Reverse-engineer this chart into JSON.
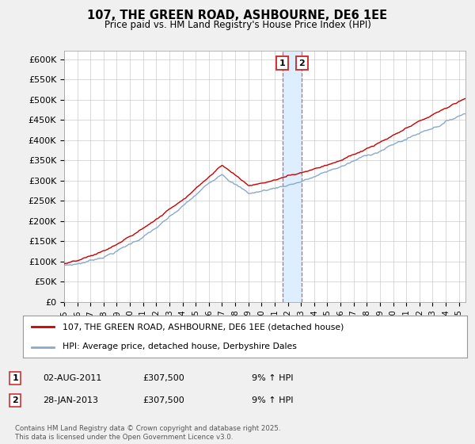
{
  "title": "107, THE GREEN ROAD, ASHBOURNE, DE6 1EE",
  "subtitle": "Price paid vs. HM Land Registry's House Price Index (HPI)",
  "ylabel_ticks": [
    "£0",
    "£50K",
    "£100K",
    "£150K",
    "£200K",
    "£250K",
    "£300K",
    "£350K",
    "£400K",
    "£450K",
    "£500K",
    "£550K",
    "£600K"
  ],
  "ytick_values": [
    0,
    50000,
    100000,
    150000,
    200000,
    250000,
    300000,
    350000,
    400000,
    450000,
    500000,
    550000,
    600000
  ],
  "ylim": [
    0,
    620000
  ],
  "xlim_start": 1995.0,
  "xlim_end": 2025.5,
  "xtick_years": [
    1995,
    1996,
    1997,
    1998,
    1999,
    2000,
    2001,
    2002,
    2003,
    2004,
    2005,
    2006,
    2007,
    2008,
    2009,
    2010,
    2011,
    2012,
    2013,
    2014,
    2015,
    2016,
    2017,
    2018,
    2019,
    2020,
    2021,
    2022,
    2023,
    2024,
    2025
  ],
  "red_color": "#cc0000",
  "blue_color": "#88aacc",
  "marker1_x": 2011.58,
  "marker2_x": 2013.07,
  "marker_region_color": "#ddeeff",
  "legend_label1": "107, THE GREEN ROAD, ASHBOURNE, DE6 1EE (detached house)",
  "legend_label2": "HPI: Average price, detached house, Derbyshire Dales",
  "table_rows": [
    {
      "num": "1",
      "date": "02-AUG-2011",
      "price": "£307,500",
      "hpi": "9% ↑ HPI"
    },
    {
      "num": "2",
      "date": "28-JAN-2013",
      "price": "£307,500",
      "hpi": "9% ↑ HPI"
    }
  ],
  "footer": "Contains HM Land Registry data © Crown copyright and database right 2025.\nThis data is licensed under the Open Government Licence v3.0.",
  "background_color": "#f0f0f0",
  "plot_bg_color": "#ffffff"
}
